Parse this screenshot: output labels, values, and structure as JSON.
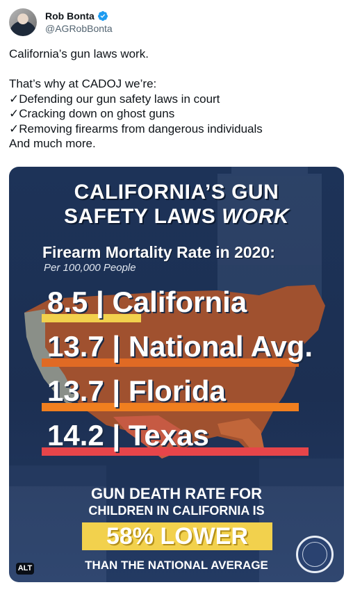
{
  "author": {
    "name": "Rob Bonta",
    "handle": "@AGRobBonta"
  },
  "tweet": {
    "lines": [
      "California’s gun laws work.",
      "",
      "That’s why at CADOJ we’re:",
      "✓Defending our gun safety laws in court",
      "✓Cracking down on ghost guns",
      "✓Removing firearms from dangerous individuals",
      "And much more."
    ]
  },
  "card": {
    "title_line1": "CALIFORNIA’S GUN",
    "title_line2_main": "SAFETY LAWS ",
    "title_line2_emph": "WORK",
    "subtitle": "Firearm Mortality Rate in 2020:",
    "subtitle2": "Per 100,000 People",
    "footer_line1": "GUN DEATH RATE FOR",
    "footer_line2": "CHILDREN IN CALIFORNIA IS",
    "highlight": "58% LOWER",
    "footer_line3": "THAN THE NATIONAL AVERAGE",
    "alt_badge": "ALT"
  },
  "stats": [
    {
      "label": "8.5 | California",
      "value": 8.5,
      "color": "#f2d14d"
    },
    {
      "label": "13.7 | National Avg.",
      "value": 13.7,
      "color": "#e06a24"
    },
    {
      "label": "13.7 | Florida",
      "value": 13.7,
      "color": "#f07f1f"
    },
    {
      "label": "14.2 | Texas",
      "value": 14.2,
      "color": "#e6454a"
    }
  ],
  "colors": {
    "verified": "#1d9bf0",
    "card_bg": "#1d3358"
  }
}
